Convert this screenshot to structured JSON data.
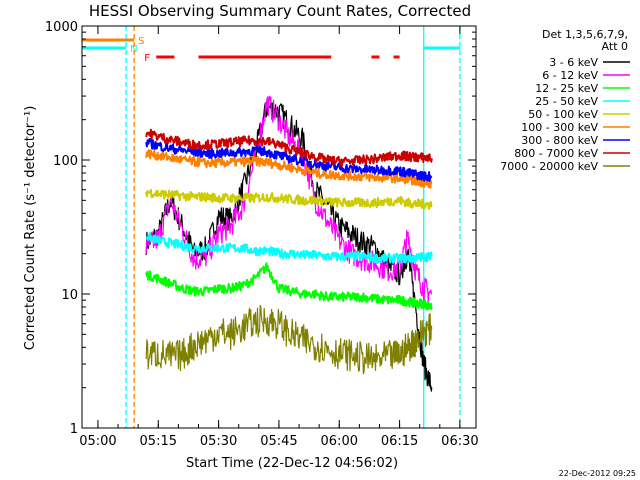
{
  "chart_data": {
    "type": "line",
    "title": "HESSI Observing Summary Count Rates, Corrected",
    "xlabel": "Start Time (22-Dec-12 04:56:02)",
    "ylabel": "Corrected Count Rate (s⁻¹ detector⁻¹)",
    "y_scale": "log",
    "ylim": [
      1,
      1000
    ],
    "xlim": [
      "04:56:02",
      "06:34:00"
    ],
    "x_ticks": [
      "05:00",
      "05:15",
      "05:30",
      "05:45",
      "06:00",
      "06:15",
      "06:30"
    ],
    "y_ticks": [
      "1",
      "10",
      "100",
      "1000"
    ],
    "grid": false,
    "legend_position": "right",
    "legend_header": [
      "Det 1,3,5,6,7,9,",
      "Att 0"
    ],
    "timestamp": "22-Dec-2012 09:25",
    "flags": [
      {
        "label": "S",
        "color": "#ff7f00",
        "intervals": [
          [
            "04:56:02",
            "05:09:00"
          ]
        ]
      },
      {
        "label": "N",
        "color": "#00ffff",
        "intervals": [
          [
            "04:56:02",
            "05:07:00"
          ],
          [
            "06:21:00",
            "06:30:00"
          ]
        ]
      },
      {
        "label": "F",
        "color": "#ff0000",
        "intervals": [
          [
            "05:14:30",
            "05:19:00"
          ],
          [
            "05:25:00",
            "05:58:00"
          ],
          [
            "06:08:00",
            "06:10:00"
          ],
          [
            "06:13:30",
            "06:15:00"
          ]
        ]
      }
    ],
    "markers": [
      {
        "x": "05:07:00",
        "color": "#00ffff",
        "style": "dashed"
      },
      {
        "x": "05:09:00",
        "color": "#ff7f00",
        "style": "dashed"
      },
      {
        "x": "06:21:00",
        "color": "#00ffff",
        "style": "solid"
      },
      {
        "x": "06:30:00",
        "color": "#00ffff",
        "style": "dashed"
      }
    ],
    "series": [
      {
        "name": "3 - 6 keV",
        "color": "#000000",
        "x": [
          "05:12",
          "05:15",
          "05:18",
          "05:21",
          "05:24",
          "05:27",
          "05:30",
          "05:33",
          "05:36",
          "05:39",
          "05:42",
          "05:45",
          "05:48",
          "05:51",
          "05:54",
          "05:57",
          "06:00",
          "06:03",
          "06:06",
          "06:09",
          "06:12",
          "06:15",
          "06:17",
          "06:19",
          "06:21",
          "06:23"
        ],
        "y": [
          24,
          28,
          50,
          32,
          20,
          22,
          38,
          36,
          60,
          110,
          250,
          230,
          180,
          140,
          60,
          45,
          32,
          28,
          24,
          22,
          16,
          14,
          20,
          8,
          3,
          2
        ]
      },
      {
        "name": "6 - 12 keV",
        "color": "#ff00ff",
        "x": [
          "05:12",
          "05:15",
          "05:18",
          "05:21",
          "05:24",
          "05:27",
          "05:30",
          "05:33",
          "05:36",
          "05:39",
          "05:42",
          "05:45",
          "05:48",
          "05:51",
          "05:54",
          "05:57",
          "06:00",
          "06:03",
          "06:06",
          "06:09",
          "06:12",
          "06:15",
          "06:17",
          "06:19",
          "06:21",
          "06:23"
        ],
        "y": [
          22,
          26,
          50,
          30,
          18,
          19,
          28,
          32,
          45,
          100,
          270,
          200,
          140,
          110,
          50,
          35,
          25,
          20,
          18,
          17,
          15,
          16,
          26,
          15,
          11,
          10
        ]
      },
      {
        "name": "12 - 25 keV",
        "color": "#00ff00",
        "x": [
          "05:12",
          "05:15",
          "05:18",
          "05:21",
          "05:24",
          "05:27",
          "05:30",
          "05:33",
          "05:36",
          "05:39",
          "05:42",
          "05:45",
          "05:48",
          "05:51",
          "05:54",
          "05:57",
          "06:00",
          "06:03",
          "06:06",
          "06:09",
          "06:12",
          "06:15",
          "06:17",
          "06:19",
          "06:21",
          "06:23"
        ],
        "y": [
          14,
          13,
          12,
          11,
          10.5,
          10.5,
          11,
          11,
          11.5,
          13,
          16,
          11,
          10.5,
          10,
          10,
          9.5,
          9.5,
          9.5,
          9.5,
          9.2,
          9,
          9,
          8.8,
          8.5,
          8.5,
          8
        ]
      },
      {
        "name": "25 - 50 keV",
        "color": "#00ffff",
        "x": [
          "05:12",
          "05:15",
          "05:18",
          "05:21",
          "05:24",
          "05:27",
          "05:30",
          "05:33",
          "05:36",
          "05:39",
          "05:42",
          "05:45",
          "05:48",
          "05:51",
          "05:54",
          "05:57",
          "06:00",
          "06:03",
          "06:06",
          "06:09",
          "06:12",
          "06:15",
          "06:17",
          "06:19",
          "06:21",
          "06:23"
        ],
        "y": [
          27,
          25,
          24,
          23,
          22,
          22,
          22,
          22,
          22,
          21,
          21,
          20,
          20,
          19.5,
          19.5,
          19,
          19,
          19,
          19,
          18.5,
          18.5,
          18.5,
          18.5,
          18.5,
          19,
          19
        ]
      },
      {
        "name": "50 - 100 keV",
        "color": "#cccc00",
        "x": [
          "05:12",
          "05:15",
          "05:18",
          "05:21",
          "05:24",
          "05:27",
          "05:30",
          "05:33",
          "05:36",
          "05:39",
          "05:42",
          "05:45",
          "05:48",
          "05:51",
          "05:54",
          "05:57",
          "06:00",
          "06:03",
          "06:06",
          "06:09",
          "06:12",
          "06:15",
          "06:17",
          "06:19",
          "06:21",
          "06:23"
        ],
        "y": [
          58,
          56,
          55,
          54,
          53,
          53,
          52,
          52,
          52,
          52,
          53,
          52,
          51,
          50,
          50,
          49,
          48,
          48,
          48,
          48,
          49,
          50,
          48,
          47,
          47,
          46
        ]
      },
      {
        "name": "100 - 300 keV",
        "color": "#ff7f00",
        "x": [
          "05:12",
          "05:15",
          "05:18",
          "05:21",
          "05:24",
          "05:27",
          "05:30",
          "05:33",
          "05:36",
          "05:39",
          "05:42",
          "05:45",
          "05:48",
          "05:51",
          "05:54",
          "05:57",
          "06:00",
          "06:03",
          "06:06",
          "06:09",
          "06:12",
          "06:15",
          "06:17",
          "06:19",
          "06:21",
          "06:23"
        ],
        "y": [
          112,
          108,
          104,
          100,
          97,
          95,
          95,
          96,
          97,
          98,
          96,
          92,
          88,
          84,
          80,
          78,
          77,
          76,
          75,
          74,
          74,
          73,
          72,
          70,
          68,
          66
        ]
      },
      {
        "name": "300 - 800 keV",
        "color": "#0000ff",
        "x": [
          "05:12",
          "05:15",
          "05:18",
          "05:21",
          "05:24",
          "05:27",
          "05:30",
          "05:33",
          "05:36",
          "05:39",
          "05:42",
          "05:45",
          "05:48",
          "05:51",
          "05:54",
          "05:57",
          "06:00",
          "06:03",
          "06:06",
          "06:09",
          "06:12",
          "06:15",
          "06:17",
          "06:19",
          "06:21",
          "06:23"
        ],
        "y": [
          135,
          128,
          122,
          118,
          115,
          112,
          112,
          113,
          115,
          118,
          115,
          108,
          102,
          98,
          94,
          90,
          88,
          86,
          85,
          84,
          84,
          83,
          80,
          78,
          76,
          75
        ]
      },
      {
        "name": "800 - 7000 keV",
        "color": "#cc0000",
        "x": [
          "05:12",
          "05:15",
          "05:18",
          "05:21",
          "05:24",
          "05:27",
          "05:30",
          "05:33",
          "05:36",
          "05:39",
          "05:42",
          "05:45",
          "05:48",
          "05:51",
          "05:54",
          "05:57",
          "06:00",
          "06:03",
          "06:06",
          "06:09",
          "06:12",
          "06:15",
          "06:17",
          "06:19",
          "06:21",
          "06:23"
        ],
        "y": [
          160,
          150,
          142,
          135,
          130,
          130,
          132,
          135,
          138,
          140,
          138,
          130,
          120,
          112,
          106,
          100,
          98,
          98,
          100,
          102,
          105,
          108,
          106,
          105,
          104,
          103
        ]
      },
      {
        "name": "7000 - 20000 keV",
        "color": "#808000",
        "x": [
          "05:12",
          "05:15",
          "05:18",
          "05:21",
          "05:24",
          "05:27",
          "05:30",
          "05:33",
          "05:36",
          "05:39",
          "05:42",
          "05:45",
          "05:48",
          "05:51",
          "05:54",
          "05:57",
          "06:00",
          "06:03",
          "06:06",
          "06:09",
          "06:12",
          "06:15",
          "06:17",
          "06:19",
          "06:21",
          "06:23"
        ],
        "y": [
          3.5,
          3.6,
          3.4,
          3.5,
          4.2,
          4.6,
          5.2,
          5.0,
          5.6,
          6.2,
          6.4,
          6.0,
          5.0,
          4.5,
          4.2,
          3.9,
          3.6,
          3.5,
          3.3,
          3.2,
          3.4,
          3.5,
          4.0,
          4.5,
          5.3,
          5.5
        ]
      }
    ]
  }
}
